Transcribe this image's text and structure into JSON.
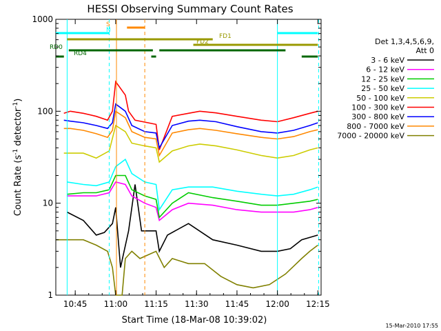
{
  "chart_data": {
    "type": "line",
    "title": "HESSI Observing Summary Count Rates",
    "xlabel": "Start Time (18-Mar-08 10:39:02)",
    "ylabel_pre": "Count Rate (s",
    "ylabel_sup1": "-1",
    "ylabel_mid": " detector",
    "ylabel_sup2": "-1",
    "ylabel_post": ")",
    "yscale": "log",
    "xlim": [
      10.63,
      12.27
    ],
    "ylim": [
      1,
      1000
    ],
    "xtick_values": [
      10.75,
      11.0,
      11.25,
      11.5,
      11.75,
      12.0,
      12.25
    ],
    "xtick_labels": [
      "10:45",
      "11:00",
      "11:15",
      "11:30",
      "11:45",
      "12:00",
      "12:15"
    ],
    "ytick_values": [
      1,
      10,
      100,
      1000
    ],
    "ytick_labels": [
      "1",
      "10",
      "100",
      "1000"
    ],
    "footer": "15-Mar-2010 17:55",
    "legend_title_1": "Det 1,3,4,5,6,9,",
    "legend_title_2": "Att 0",
    "series": [
      {
        "name": "3 - 6 keV",
        "color": "#000000",
        "points": [
          [
            10.7,
            8
          ],
          [
            10.8,
            6.5
          ],
          [
            10.88,
            4.5
          ],
          [
            10.93,
            4.8
          ],
          [
            10.98,
            6
          ],
          [
            11.0,
            9
          ],
          [
            11.03,
            2
          ],
          [
            11.08,
            5
          ],
          [
            11.12,
            16
          ],
          [
            11.16,
            5
          ],
          [
            11.25,
            5
          ],
          [
            11.27,
            3
          ],
          [
            11.32,
            4.5
          ],
          [
            11.45,
            6
          ],
          [
            11.6,
            4
          ],
          [
            11.75,
            3.5
          ],
          [
            11.9,
            3
          ],
          [
            12.0,
            3
          ],
          [
            12.08,
            3.2
          ],
          [
            12.15,
            4
          ],
          [
            12.25,
            4.5
          ]
        ]
      },
      {
        "name": "6 - 12 keV",
        "color": "#ff00ff",
        "points": [
          [
            10.7,
            12
          ],
          [
            10.8,
            12
          ],
          [
            10.88,
            12
          ],
          [
            10.96,
            13
          ],
          [
            11.0,
            17
          ],
          [
            11.06,
            16
          ],
          [
            11.1,
            12
          ],
          [
            11.18,
            10
          ],
          [
            11.25,
            9
          ],
          [
            11.27,
            6.5
          ],
          [
            11.35,
            8.5
          ],
          [
            11.45,
            10
          ],
          [
            11.6,
            9.5
          ],
          [
            11.75,
            8.5
          ],
          [
            11.9,
            8
          ],
          [
            12.0,
            8
          ],
          [
            12.1,
            8
          ],
          [
            12.2,
            8.5
          ],
          [
            12.25,
            9
          ]
        ]
      },
      {
        "name": "12 - 25 keV",
        "color": "#00cc00",
        "points": [
          [
            10.7,
            12.5
          ],
          [
            10.8,
            13
          ],
          [
            10.88,
            13
          ],
          [
            10.96,
            14
          ],
          [
            11.0,
            20
          ],
          [
            11.06,
            20
          ],
          [
            11.1,
            14
          ],
          [
            11.18,
            12
          ],
          [
            11.25,
            11
          ],
          [
            11.27,
            7
          ],
          [
            11.35,
            10
          ],
          [
            11.45,
            13
          ],
          [
            11.6,
            11.5
          ],
          [
            11.75,
            10.5
          ],
          [
            11.9,
            9.5
          ],
          [
            12.0,
            9.5
          ],
          [
            12.1,
            10
          ],
          [
            12.2,
            10.5
          ],
          [
            12.25,
            11
          ]
        ]
      },
      {
        "name": "25 - 50 keV",
        "color": "#00ffff",
        "points": [
          [
            10.7,
            17
          ],
          [
            10.8,
            16
          ],
          [
            10.88,
            15.5
          ],
          [
            10.96,
            17
          ],
          [
            11.0,
            25
          ],
          [
            11.06,
            30
          ],
          [
            11.1,
            21
          ],
          [
            11.18,
            17
          ],
          [
            11.25,
            16
          ],
          [
            11.27,
            8.5
          ],
          [
            11.35,
            14
          ],
          [
            11.45,
            15
          ],
          [
            11.6,
            15
          ],
          [
            11.75,
            13.5
          ],
          [
            11.9,
            12.5
          ],
          [
            12.0,
            12
          ],
          [
            12.1,
            12.5
          ],
          [
            12.2,
            14
          ],
          [
            12.25,
            15
          ]
        ]
      },
      {
        "name": "50 - 100 keV",
        "color": "#cccc00",
        "points": [
          [
            10.68,
            35
          ],
          [
            10.72,
            35
          ],
          [
            10.8,
            35
          ],
          [
            10.88,
            31
          ],
          [
            10.96,
            37
          ],
          [
            11.0,
            70
          ],
          [
            11.06,
            60
          ],
          [
            11.1,
            45
          ],
          [
            11.18,
            42
          ],
          [
            11.25,
            40
          ],
          [
            11.27,
            28
          ],
          [
            11.35,
            37
          ],
          [
            11.45,
            42
          ],
          [
            11.52,
            44
          ],
          [
            11.62,
            42
          ],
          [
            11.75,
            38
          ],
          [
            11.9,
            33
          ],
          [
            12.0,
            31
          ],
          [
            12.1,
            33
          ],
          [
            12.2,
            38
          ],
          [
            12.25,
            40
          ]
        ]
      },
      {
        "name": "100 - 300 keV",
        "color": "#ff0000",
        "points": [
          [
            10.68,
            95
          ],
          [
            10.72,
            100
          ],
          [
            10.8,
            95
          ],
          [
            10.88,
            88
          ],
          [
            10.95,
            80
          ],
          [
            10.98,
            100
          ],
          [
            11.0,
            210
          ],
          [
            11.06,
            150
          ],
          [
            11.08,
            100
          ],
          [
            11.12,
            80
          ],
          [
            11.2,
            75
          ],
          [
            11.25,
            72
          ],
          [
            11.27,
            38
          ],
          [
            11.35,
            88
          ],
          [
            11.45,
            95
          ],
          [
            11.52,
            100
          ],
          [
            11.62,
            96
          ],
          [
            11.75,
            88
          ],
          [
            11.9,
            80
          ],
          [
            12.0,
            77
          ],
          [
            12.1,
            85
          ],
          [
            12.2,
            95
          ],
          [
            12.25,
            100
          ]
        ]
      },
      {
        "name": "300 - 800 keV",
        "color": "#0000ff",
        "points": [
          [
            10.68,
            80
          ],
          [
            10.72,
            78
          ],
          [
            10.8,
            75
          ],
          [
            10.88,
            70
          ],
          [
            10.95,
            65
          ],
          [
            10.98,
            75
          ],
          [
            11.0,
            120
          ],
          [
            11.06,
            100
          ],
          [
            11.1,
            70
          ],
          [
            11.18,
            60
          ],
          [
            11.25,
            58
          ],
          [
            11.27,
            40
          ],
          [
            11.35,
            70
          ],
          [
            11.45,
            78
          ],
          [
            11.52,
            80
          ],
          [
            11.62,
            77
          ],
          [
            11.75,
            68
          ],
          [
            11.9,
            60
          ],
          [
            12.0,
            58
          ],
          [
            12.1,
            62
          ],
          [
            12.2,
            70
          ],
          [
            12.25,
            75
          ]
        ]
      },
      {
        "name": "800 - 7000 keV",
        "color": "#ff8800",
        "points": [
          [
            10.68,
            65
          ],
          [
            10.72,
            65
          ],
          [
            10.8,
            62
          ],
          [
            10.88,
            57
          ],
          [
            10.95,
            52
          ],
          [
            10.98,
            62
          ],
          [
            11.0,
            100
          ],
          [
            11.06,
            85
          ],
          [
            11.1,
            60
          ],
          [
            11.18,
            52
          ],
          [
            11.25,
            50
          ],
          [
            11.27,
            33
          ],
          [
            11.35,
            58
          ],
          [
            11.45,
            63
          ],
          [
            11.52,
            65
          ],
          [
            11.62,
            62
          ],
          [
            11.75,
            57
          ],
          [
            11.9,
            52
          ],
          [
            12.0,
            50
          ],
          [
            12.1,
            53
          ],
          [
            12.2,
            60
          ],
          [
            12.25,
            63
          ]
        ]
      },
      {
        "name": "7000 - 20000 keV",
        "color": "#808000",
        "points": [
          [
            10.63,
            4
          ],
          [
            10.7,
            4
          ],
          [
            10.8,
            4
          ],
          [
            10.88,
            3.5
          ],
          [
            10.95,
            3
          ],
          [
            10.98,
            2
          ],
          [
            11.0,
            1
          ],
          [
            11.04,
            1
          ],
          [
            11.06,
            2.5
          ],
          [
            11.1,
            3
          ],
          [
            11.15,
            2.5
          ],
          [
            11.25,
            3
          ],
          [
            11.3,
            2
          ],
          [
            11.35,
            2.5
          ],
          [
            11.45,
            2.2
          ],
          [
            11.55,
            2.2
          ],
          [
            11.65,
            1.6
          ],
          [
            11.75,
            1.3
          ],
          [
            11.85,
            1.2
          ],
          [
            11.95,
            1.3
          ],
          [
            12.05,
            1.7
          ],
          [
            12.15,
            2.5
          ],
          [
            12.2,
            3
          ],
          [
            12.25,
            3.5
          ]
        ]
      }
    ],
    "segment_bars": [
      {
        "label": "S",
        "color": "#ff8800",
        "y": 40,
        "segments": [
          [
            11.07,
            11.18
          ]
        ]
      },
      {
        "label": "N",
        "color": "#00ffff",
        "y": 48,
        "segments": [
          [
            10.63,
            10.96
          ],
          [
            12.0,
            12.25
          ]
        ]
      },
      {
        "label": "FD1",
        "color": "#999900",
        "y": 57,
        "segments": [
          [
            10.7,
            11.6
          ]
        ]
      },
      {
        "label": "FD2",
        "color": "#999900",
        "y": 65,
        "segments": [
          [
            11.48,
            12.25
          ]
        ]
      },
      {
        "label": "RD0",
        "color": "#006600",
        "y": 73,
        "segments": [
          [
            10.71,
            11.23
          ],
          [
            11.27,
            12.05
          ]
        ]
      },
      {
        "label": "RD4",
        "color": "#006600",
        "y": 82,
        "segments": [
          [
            10.63,
            10.68
          ],
          [
            11.22,
            11.25
          ],
          [
            12.15,
            12.25
          ]
        ]
      }
    ],
    "vlines": [
      {
        "x": 10.7,
        "color": "#00ffff",
        "dashed": false
      },
      {
        "x": 10.96,
        "color": "#00ffff",
        "dashed": true
      },
      {
        "x": 11.005,
        "color": "#ff8800",
        "dashed": false
      },
      {
        "x": 11.18,
        "color": "#ff8800",
        "dashed": true
      },
      {
        "x": 12.0,
        "color": "#00ffff",
        "dashed": false
      },
      {
        "x": 12.255,
        "color": "#00ffff",
        "dashed": true
      }
    ]
  }
}
